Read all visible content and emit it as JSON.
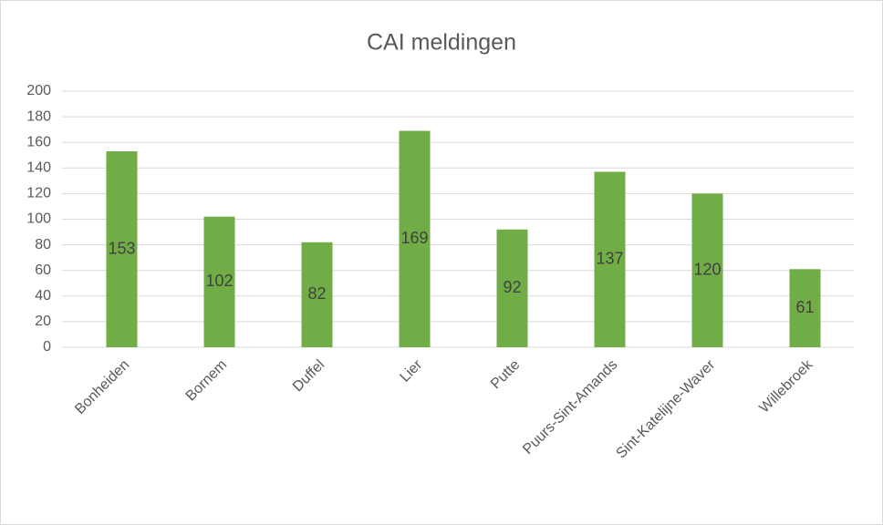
{
  "chart_data": {
    "type": "bar",
    "title": "CAI meldingen",
    "categories": [
      "Bonheiden",
      "Bornem",
      "Duffel",
      "Lier",
      "Putte",
      "Puurs-Sint-Amands",
      "Sint-Katelijne-Waver",
      "Willebroek"
    ],
    "values": [
      153,
      102,
      82,
      169,
      92,
      137,
      120,
      61
    ],
    "color": "#70ad47",
    "ylim": [
      0,
      200
    ],
    "yticks": [
      0,
      20,
      40,
      60,
      80,
      100,
      120,
      140,
      160,
      180,
      200
    ],
    "grid": true
  }
}
